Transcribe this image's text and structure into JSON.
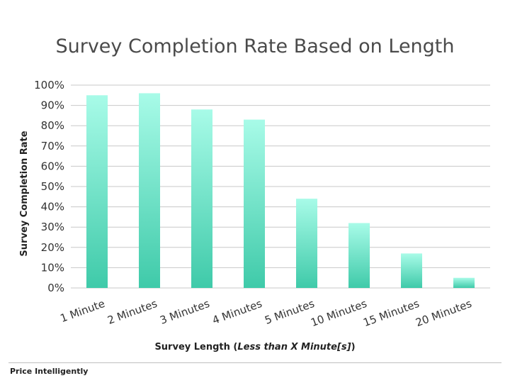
{
  "chart_data": {
    "type": "bar",
    "title": "Survey Completion Rate Based on Length",
    "categories": [
      "1 Minute",
      "2 Minutes",
      "3 Minutes",
      "4 Minutes",
      "5  Minutes",
      "10 Minutes",
      "15 Minutes",
      "20 Minutes"
    ],
    "values": [
      95,
      96,
      88,
      83,
      44,
      32,
      17,
      5
    ],
    "ylabel": "Survey Completion Rate",
    "xlabel_prefix": "Survey Length (",
    "xlabel_italic": "Less than X Minute[s]",
    "xlabel_suffix": ")",
    "ylim": [
      0,
      100
    ],
    "yticks": [
      "0%",
      "10%",
      "20%",
      "30%",
      "40%",
      "50%",
      "60%",
      "70%",
      "80%",
      "90%",
      "100%"
    ],
    "grid": true,
    "colors": {
      "bar_top": "#a8fbe8",
      "bar_bottom": "#3fcaa9",
      "grid": "#c8c8c8"
    }
  },
  "footer": {
    "brand": "Price Intelligently"
  }
}
